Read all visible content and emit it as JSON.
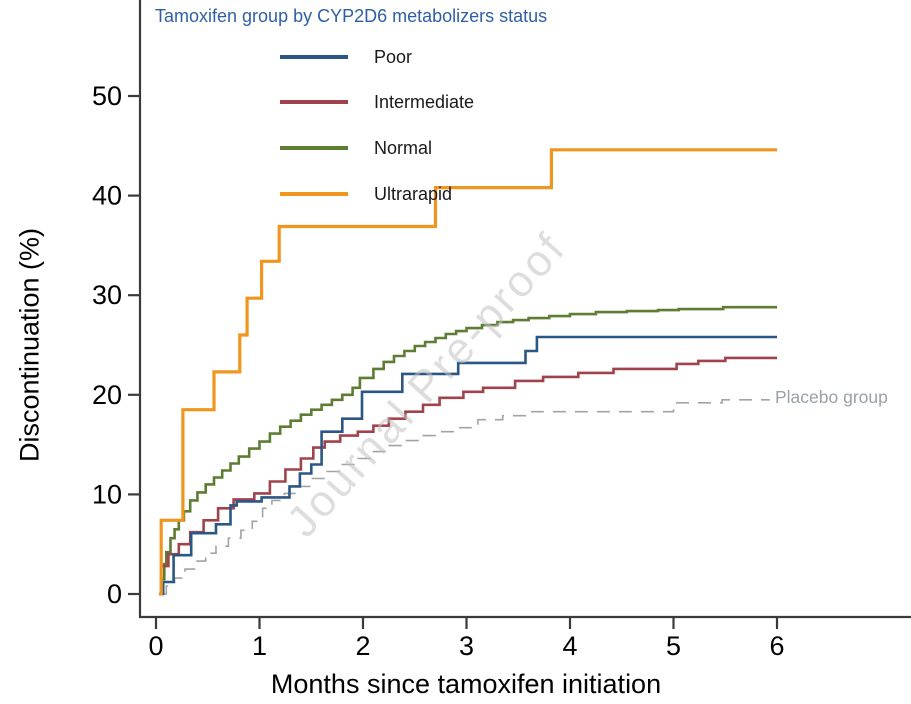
{
  "chart_data": {
    "type": "line",
    "variant": "step-cumulative-incidence",
    "xlabel": "Months since tamoxifen initiation",
    "ylabel": "Discontinuation (%)",
    "x_ticks": [
      0,
      1,
      2,
      3,
      4,
      5,
      6
    ],
    "y_ticks": [
      0,
      10,
      20,
      30,
      40,
      50
    ],
    "xlim": [
      0,
      6
    ],
    "ylim": [
      0,
      50
    ],
    "grid": false,
    "watermark": "Journal Pre-proof",
    "legend": {
      "title": "Tamoxifen group by CYP2D6 metabolizers status",
      "title_color": "#2e5fa6",
      "position": "top-left-inside"
    },
    "annotation_color": "#9aa1a8",
    "series": [
      {
        "name": "Poor",
        "color": "#2a5783",
        "dash": false,
        "line_width": 2.6,
        "end_month": 6.0,
        "points": [
          [
            0.05,
            0
          ],
          [
            0.07,
            1.2
          ],
          [
            0.17,
            3.9
          ],
          [
            0.34,
            6.1
          ],
          [
            0.58,
            7.0
          ],
          [
            0.72,
            8.9
          ],
          [
            0.78,
            9.3
          ],
          [
            1.02,
            9.7
          ],
          [
            1.29,
            10.8
          ],
          [
            1.39,
            12.1
          ],
          [
            1.5,
            13.0
          ],
          [
            1.6,
            16.3
          ],
          [
            1.8,
            17.6
          ],
          [
            1.99,
            20.3
          ],
          [
            2.38,
            22.1
          ],
          [
            2.92,
            23.2
          ],
          [
            3.57,
            24.4
          ],
          [
            3.68,
            25.8
          ]
        ]
      },
      {
        "name": "Intermediate",
        "color": "#a0434d",
        "dash": false,
        "line_width": 2.6,
        "end_month": 6.0,
        "points": [
          [
            0.03,
            0
          ],
          [
            0.05,
            2.8
          ],
          [
            0.12,
            4.0
          ],
          [
            0.22,
            5.0
          ],
          [
            0.33,
            6.2
          ],
          [
            0.46,
            7.4
          ],
          [
            0.6,
            8.6
          ],
          [
            0.75,
            9.5
          ],
          [
            0.95,
            10.1
          ],
          [
            1.1,
            11.3
          ],
          [
            1.25,
            12.5
          ],
          [
            1.4,
            13.6
          ],
          [
            1.52,
            14.7
          ],
          [
            1.63,
            15.3
          ],
          [
            1.78,
            15.9
          ],
          [
            1.95,
            16.3
          ],
          [
            2.1,
            16.9
          ],
          [
            2.25,
            17.6
          ],
          [
            2.41,
            18.3
          ],
          [
            2.58,
            19.0
          ],
          [
            2.74,
            19.7
          ],
          [
            2.97,
            20.3
          ],
          [
            3.16,
            20.7
          ],
          [
            3.47,
            21.4
          ],
          [
            3.74,
            21.8
          ],
          [
            4.08,
            22.2
          ],
          [
            4.42,
            22.6
          ],
          [
            5.03,
            23.1
          ],
          [
            5.24,
            23.4
          ],
          [
            5.5,
            23.7
          ]
        ]
      },
      {
        "name": "Normal",
        "color": "#5d7d33",
        "dash": false,
        "line_width": 2.6,
        "end_month": 6.0,
        "points": [
          [
            0.03,
            0
          ],
          [
            0.05,
            1.5
          ],
          [
            0.08,
            3.0
          ],
          [
            0.1,
            4.2
          ],
          [
            0.14,
            5.6
          ],
          [
            0.18,
            6.5
          ],
          [
            0.22,
            7.4
          ],
          [
            0.27,
            8.3
          ],
          [
            0.33,
            9.4
          ],
          [
            0.4,
            10.2
          ],
          [
            0.48,
            11.0
          ],
          [
            0.56,
            11.7
          ],
          [
            0.64,
            12.4
          ],
          [
            0.72,
            13.1
          ],
          [
            0.8,
            13.8
          ],
          [
            0.9,
            14.6
          ],
          [
            1.0,
            15.3
          ],
          [
            1.1,
            16.1
          ],
          [
            1.2,
            16.8
          ],
          [
            1.3,
            17.4
          ],
          [
            1.4,
            18.0
          ],
          [
            1.5,
            18.5
          ],
          [
            1.6,
            19.0
          ],
          [
            1.7,
            19.5
          ],
          [
            1.8,
            20.0
          ],
          [
            1.9,
            20.7
          ],
          [
            1.97,
            21.7
          ],
          [
            2.1,
            22.6
          ],
          [
            2.2,
            23.3
          ],
          [
            2.3,
            23.9
          ],
          [
            2.4,
            24.4
          ],
          [
            2.5,
            24.9
          ],
          [
            2.6,
            25.3
          ],
          [
            2.7,
            25.7
          ],
          [
            2.8,
            26.1
          ],
          [
            2.9,
            26.4
          ],
          [
            3.0,
            26.7
          ],
          [
            3.15,
            27.0
          ],
          [
            3.3,
            27.3
          ],
          [
            3.45,
            27.5
          ],
          [
            3.6,
            27.7
          ],
          [
            3.8,
            27.9
          ],
          [
            4.0,
            28.1
          ],
          [
            4.25,
            28.3
          ],
          [
            4.55,
            28.4
          ],
          [
            4.85,
            28.5
          ],
          [
            5.05,
            28.6
          ],
          [
            5.48,
            28.8
          ]
        ]
      },
      {
        "name": "Ultrarapid",
        "color": "#f0961e",
        "dash": false,
        "line_width": 3.2,
        "end_month": 6.0,
        "points": [
          [
            0.03,
            0
          ],
          [
            0.05,
            7.4
          ],
          [
            0.26,
            18.5
          ],
          [
            0.56,
            22.3
          ],
          [
            0.81,
            26.0
          ],
          [
            0.88,
            29.7
          ],
          [
            1.02,
            33.4
          ],
          [
            1.19,
            36.9
          ],
          [
            2.7,
            40.8
          ],
          [
            3.82,
            44.6
          ]
        ]
      },
      {
        "name": "Placebo group",
        "color": "#a3a3a3",
        "dash": true,
        "line_width": 1.6,
        "end_month": 5.93,
        "points": [
          [
            0.07,
            0
          ],
          [
            0.1,
            0.8
          ],
          [
            0.18,
            1.6
          ],
          [
            0.28,
            2.5
          ],
          [
            0.38,
            3.3
          ],
          [
            0.48,
            4.1
          ],
          [
            0.58,
            4.8
          ],
          [
            0.7,
            5.6
          ],
          [
            0.82,
            6.4
          ],
          [
            0.93,
            7.3
          ],
          [
            1.03,
            8.6
          ],
          [
            1.12,
            9.4
          ],
          [
            1.24,
            10.1
          ],
          [
            1.37,
            10.8
          ],
          [
            1.5,
            11.6
          ],
          [
            1.65,
            12.3
          ],
          [
            1.8,
            13.0
          ],
          [
            1.95,
            13.6
          ],
          [
            2.1,
            14.3
          ],
          [
            2.25,
            14.9
          ],
          [
            2.42,
            15.4
          ],
          [
            2.58,
            15.9
          ],
          [
            2.74,
            16.3
          ],
          [
            2.9,
            16.7
          ],
          [
            3.11,
            17.5
          ],
          [
            3.35,
            17.9
          ],
          [
            3.57,
            18.3
          ],
          [
            5.0,
            19.2
          ],
          [
            5.47,
            19.5
          ]
        ]
      }
    ]
  }
}
